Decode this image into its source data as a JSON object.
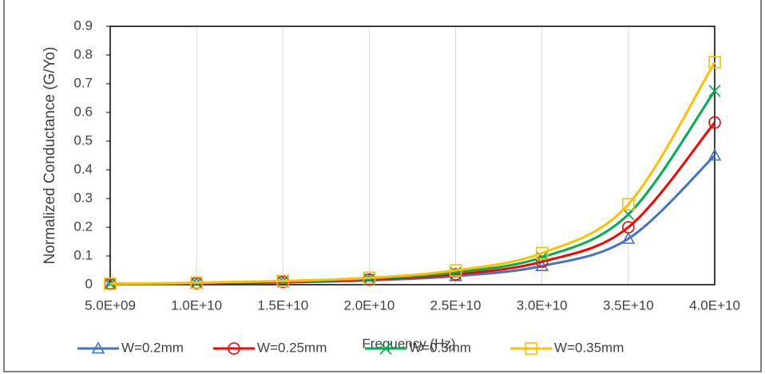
{
  "chart_data": {
    "type": "line",
    "x_label": "Frequency (Hz)",
    "y_label": "Normalized Conductance (G/Yo)",
    "x": [
      5000000000,
      10000000000,
      15000000000,
      20000000000,
      25000000000,
      30000000000,
      35000000000,
      40000000000
    ],
    "series": [
      {
        "name": "W=0.2mm",
        "color": "#4472c4",
        "marker": "triangle",
        "values": [
          0.002,
          0.004,
          0.008,
          0.015,
          0.03,
          0.065,
          0.16,
          0.45
        ]
      },
      {
        "name": "W=0.25mm",
        "color": "#ff0000",
        "marker": "circle",
        "values": [
          0.002,
          0.005,
          0.01,
          0.018,
          0.036,
          0.08,
          0.2,
          0.565
        ]
      },
      {
        "name": "W=0.3mm",
        "color": "#00b050",
        "marker": "cross",
        "values": [
          0.003,
          0.006,
          0.012,
          0.021,
          0.043,
          0.095,
          0.245,
          0.675
        ]
      },
      {
        "name": "W=0.35mm",
        "color": "#ffc000",
        "marker": "square",
        "values": [
          0.003,
          0.007,
          0.013,
          0.024,
          0.05,
          0.11,
          0.28,
          0.775
        ]
      }
    ],
    "xlim": [
      5000000000,
      40000000000
    ],
    "xticks": [
      {
        "value": 5000000000,
        "label": "5.0E+09"
      },
      {
        "value": 10000000000,
        "label": "1.0E+10"
      },
      {
        "value": 15000000000,
        "label": "1.5E+10"
      },
      {
        "value": 20000000000,
        "label": "2.0E+10"
      },
      {
        "value": 25000000000,
        "label": "2.5E+10"
      },
      {
        "value": 30000000000,
        "label": "3.0E+10"
      },
      {
        "value": 35000000000,
        "label": "3.5E+10"
      },
      {
        "value": 40000000000,
        "label": "4.0E+10"
      }
    ],
    "ylim": [
      0,
      0.9
    ],
    "yticks": [
      0,
      0.1,
      0.2,
      0.3,
      0.4,
      0.5,
      0.6,
      0.7,
      0.8,
      0.9
    ],
    "grid": "x",
    "legend": "bottom"
  }
}
